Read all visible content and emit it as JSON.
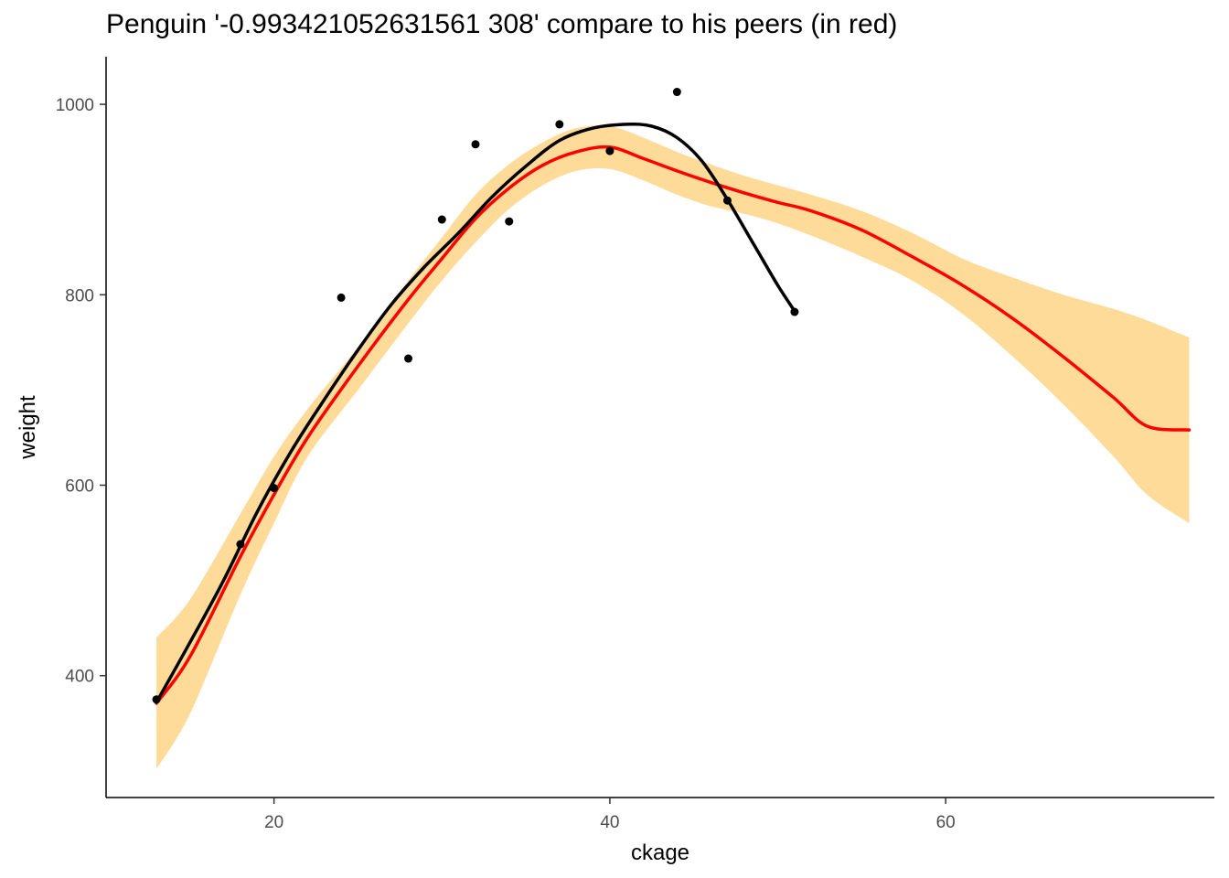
{
  "chart_data": {
    "type": "line",
    "title": "Penguin '-0.993421052631561 308' compare to his peers (in red)",
    "xlabel": "ckage",
    "ylabel": "weight",
    "xlim": [
      10,
      76
    ],
    "ylim": [
      272,
      1050
    ],
    "x_ticks": [
      20,
      40,
      60
    ],
    "y_ticks": [
      400,
      600,
      800,
      1000
    ],
    "grid": false,
    "legend": "none",
    "colors": {
      "peer_line": "#ff0000",
      "band": "#ffdb99",
      "individual": "#000000",
      "points": "#000000"
    },
    "series": [
      {
        "kind": "confidence-band",
        "x": [
          13,
          15,
          18,
          20,
          22,
          25,
          28,
          30,
          32,
          34,
          36,
          38,
          40,
          42,
          44,
          46,
          48,
          50,
          52,
          55,
          58,
          61,
          64,
          67,
          70,
          72,
          74.5
        ],
        "lower": [
          302,
          360,
          485,
          560,
          630,
          700,
          770,
          815,
          855,
          890,
          915,
          930,
          932,
          920,
          905,
          893,
          885,
          875,
          862,
          840,
          815,
          780,
          735,
          685,
          630,
          590,
          560
        ],
        "upper": [
          440,
          480,
          570,
          630,
          680,
          745,
          815,
          860,
          905,
          937,
          960,
          975,
          977,
          965,
          950,
          937,
          925,
          915,
          905,
          888,
          865,
          838,
          818,
          800,
          785,
          773,
          755
        ]
      },
      {
        "kind": "peer-smooth",
        "x": [
          13,
          15,
          18,
          20,
          22,
          25,
          28,
          30,
          32,
          34,
          36,
          38,
          40,
          42,
          44,
          46,
          48,
          50,
          52,
          55,
          58,
          61,
          64,
          67,
          70,
          72,
          74.5
        ],
        "y": [
          371,
          420,
          525,
          590,
          650,
          725,
          795,
          838,
          880,
          912,
          936,
          950,
          955,
          943,
          930,
          918,
          907,
          897,
          888,
          868,
          840,
          810,
          775,
          735,
          692,
          662,
          658
        ]
      },
      {
        "kind": "individual-smooth",
        "x": [
          13,
          15,
          17,
          19,
          21,
          23,
          25,
          27,
          29,
          31,
          33,
          35,
          37,
          39,
          41,
          42.5,
          44,
          45.5,
          47,
          48.5,
          50,
          51
        ],
        "y": [
          372,
          435,
          500,
          572,
          635,
          690,
          742,
          790,
          830,
          865,
          903,
          935,
          962,
          975,
          979,
          977,
          965,
          940,
          900,
          855,
          810,
          783
        ]
      },
      {
        "kind": "individual-points",
        "x": [
          13,
          18,
          20,
          24,
          28,
          30,
          32,
          34,
          37,
          40,
          44,
          47,
          51
        ],
        "y": [
          375,
          538,
          597,
          797,
          733,
          879,
          958,
          877,
          979,
          951,
          1013,
          899,
          782
        ]
      }
    ]
  }
}
